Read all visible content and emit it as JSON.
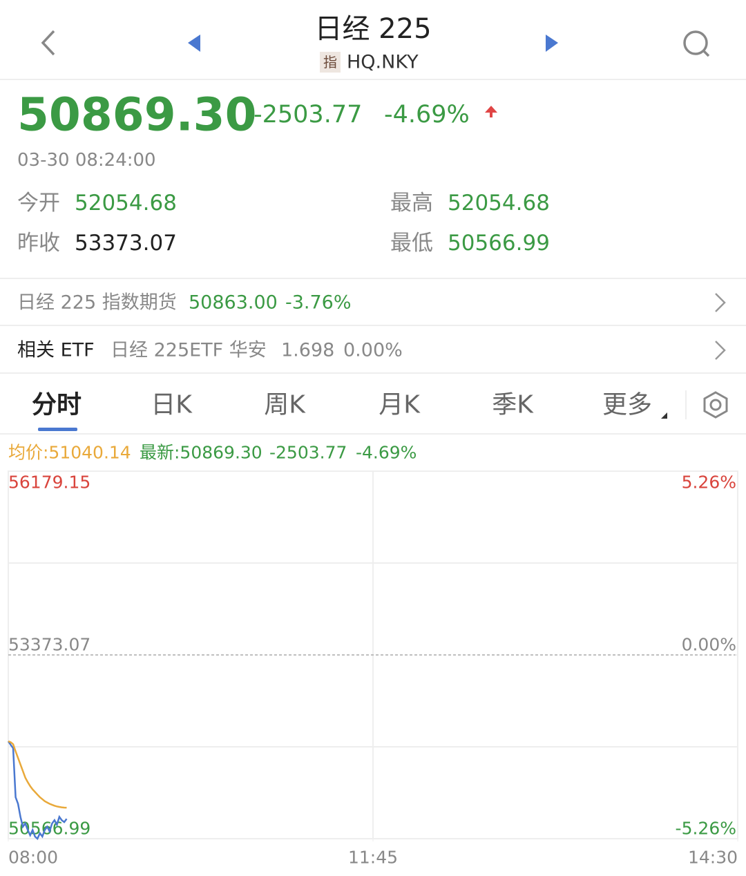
{
  "header": {
    "title": "日经 225",
    "badge": "指",
    "code": "HQ.NKY"
  },
  "quote": {
    "price": "50869.30",
    "change": "-2503.77",
    "change_pct": "-4.69%",
    "time": "03-30 08:24:00"
  },
  "stats": [
    {
      "label": "今开",
      "value": "52054.68"
    },
    {
      "label": "最高",
      "value": "52054.68"
    },
    {
      "label": "昨收",
      "value": "53373.07"
    },
    {
      "label": "最低",
      "value": "50566.99"
    }
  ],
  "futures": {
    "label": "日经 225 指数期货",
    "value": "50863.00",
    "change_pct": "-3.76%"
  },
  "etf": {
    "label": "相关 ETF",
    "name": "日经 225ETF 华安",
    "price": "1.698",
    "change_pct": "0.00%"
  },
  "tabs": [
    "分时",
    "日K",
    "周K",
    "月K",
    "季K",
    "更多"
  ],
  "legend": {
    "avg": "均价:51040.14",
    "last": "最新:50869.30",
    "change": "-2503.77",
    "change_pct": "-4.69%"
  },
  "chart_data": {
    "type": "line",
    "x": [
      0,
      1,
      2,
      3,
      4,
      5,
      6,
      7,
      8,
      9,
      10,
      11,
      12,
      13,
      14,
      15,
      16,
      17,
      18,
      19,
      20,
      21,
      22,
      23,
      24
    ],
    "xlim": [
      0,
      300
    ],
    "xticks": [
      {
        "value": 0,
        "label": "08:00"
      },
      {
        "value": 150,
        "label": "11:45"
      },
      {
        "value": 300,
        "label": "14:30"
      }
    ],
    "ylim": [
      50566.99,
      56179.15
    ],
    "yticks": [
      56179.15,
      53373.07,
      50566.99
    ],
    "y2lim": [
      -5.26,
      5.26
    ],
    "y2ticks": [
      {
        "value": 5.26,
        "label": "5.26%"
      },
      {
        "value": 0,
        "label": "0.00%"
      },
      {
        "value": -5.26,
        "label": "-5.26%"
      }
    ],
    "series": [
      {
        "color": "#4a78d0",
        "values": [
          52054,
          52000,
          51950,
          51200,
          51100,
          50900,
          50750,
          50800,
          50700,
          50620,
          50700,
          50600,
          50567,
          50650,
          50600,
          50700,
          50750,
          50680,
          50800,
          50850,
          50780,
          50900,
          50850,
          50820,
          50869.3
        ]
      },
      {
        "color": "#e9a93a",
        "values": [
          52054,
          52040,
          52010,
          51900,
          51800,
          51700,
          51600,
          51500,
          51430,
          51370,
          51320,
          51280,
          51240,
          51200,
          51170,
          51140,
          51120,
          51100,
          51085,
          51070,
          51060,
          51052,
          51046,
          51042,
          51040.14
        ]
      }
    ]
  }
}
